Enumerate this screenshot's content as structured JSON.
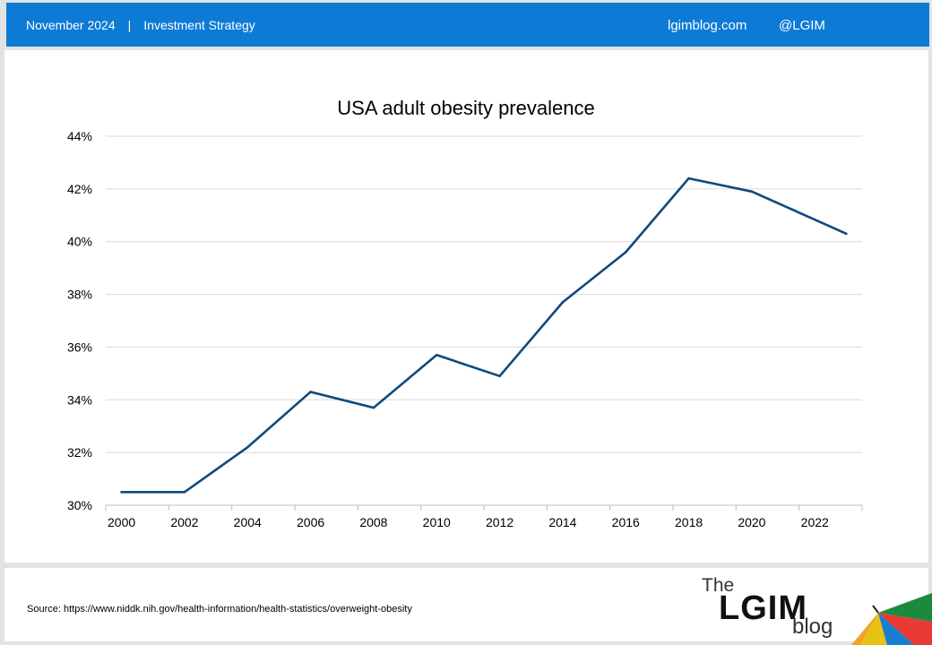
{
  "header": {
    "date": "November 2024",
    "separator": "|",
    "section": "Investment Strategy",
    "site": "lgimblog.com",
    "handle": "@LGIM"
  },
  "chart_data": {
    "type": "line",
    "title": "USA adult obesity prevalence",
    "xlabel": "",
    "ylabel": "",
    "x": [
      2000,
      2002,
      2004,
      2006,
      2008,
      2010,
      2012,
      2014,
      2016,
      2018,
      2020,
      2023
    ],
    "y_ticks": [
      "30%",
      "32%",
      "34%",
      "36%",
      "38%",
      "40%",
      "42%",
      "44%"
    ],
    "x_ticks": [
      "2000",
      "2002",
      "2004",
      "2006",
      "2008",
      "2010",
      "2012",
      "2014",
      "2016",
      "2018",
      "2020",
      "2022"
    ],
    "ylim": [
      30,
      44
    ],
    "xlim": [
      1999.5,
      2023.5
    ],
    "grid": true,
    "series": [
      {
        "values": [
          30.5,
          30.5,
          32.2,
          34.3,
          33.7,
          35.7,
          34.9,
          37.7,
          39.6,
          42.4,
          41.9,
          40.3
        ],
        "color": "#0d4a7f"
      }
    ]
  },
  "footer": {
    "source": "Source: https://www.niddk.nih.gov/health-information/health-statistics/overweight-obesity"
  },
  "logo": {
    "the": "The",
    "lgim": "LGIM",
    "blog": "blog"
  }
}
